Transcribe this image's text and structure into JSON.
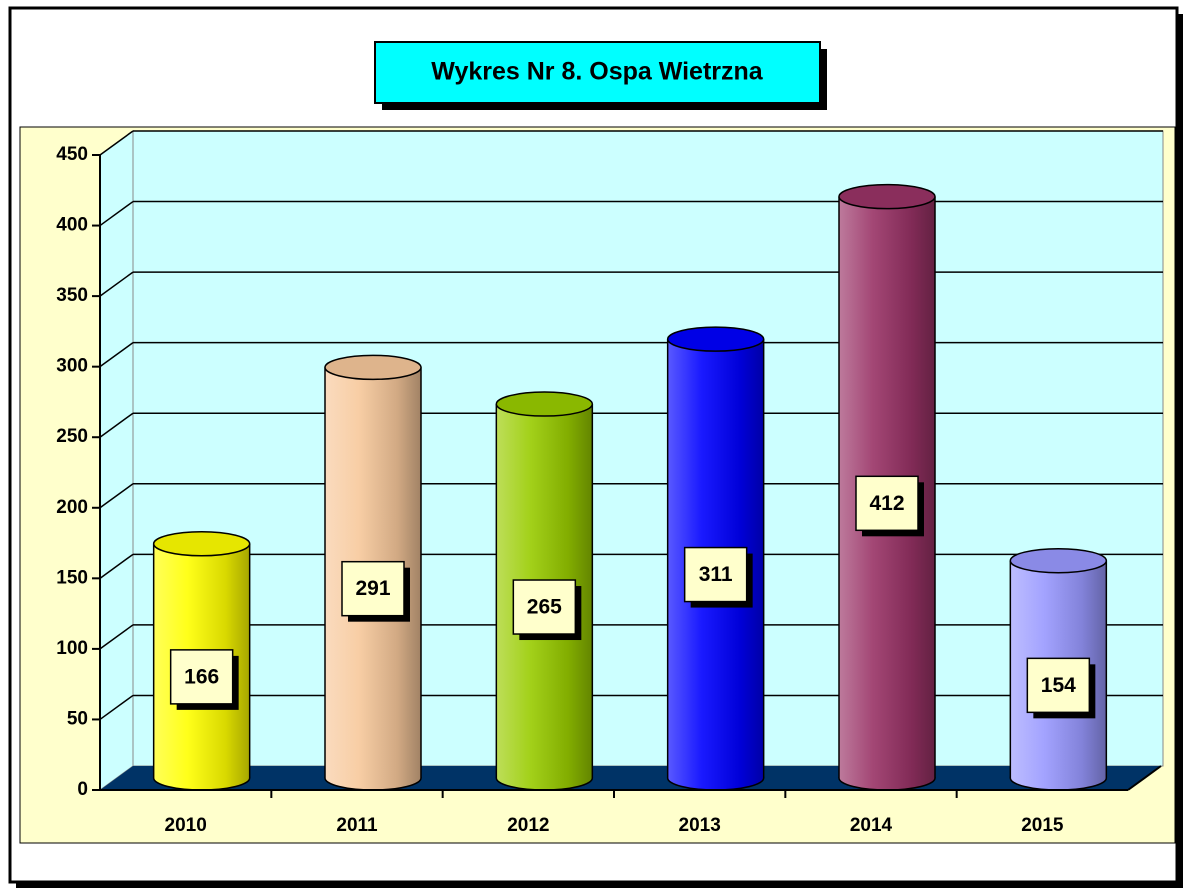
{
  "chart_data": {
    "type": "bar",
    "title": "Wykres Nr 8. Ospa Wietrzna",
    "categories": [
      "2010",
      "2011",
      "2012",
      "2013",
      "2014",
      "2015"
    ],
    "values": [
      166,
      291,
      265,
      311,
      412,
      154
    ],
    "colors": [
      "#ffff00",
      "#f7c89b",
      "#99cc00",
      "#0000ff",
      "#993366",
      "#9999ff"
    ],
    "ylim": [
      0,
      450
    ],
    "yticks": [
      0,
      50,
      100,
      150,
      200,
      250,
      300,
      350,
      400,
      450
    ],
    "grid": true
  }
}
